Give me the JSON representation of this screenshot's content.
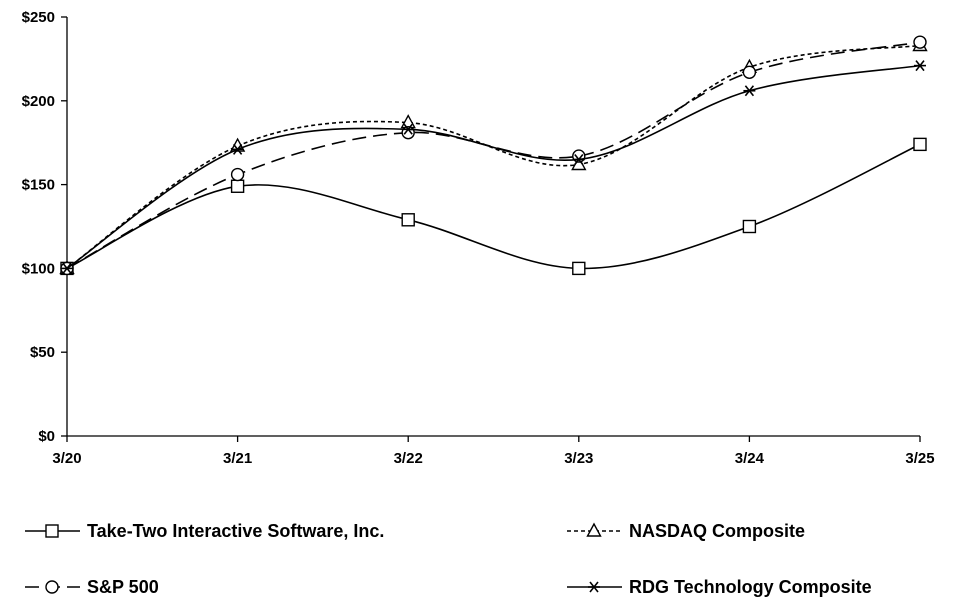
{
  "chart_data": {
    "type": "line",
    "title": "",
    "xlabel": "",
    "ylabel": "",
    "categories": [
      "3/20",
      "3/21",
      "3/22",
      "3/23",
      "3/24",
      "3/25"
    ],
    "y_ticks": [
      "$0",
      "$50",
      "$100",
      "$150",
      "$200",
      "$250"
    ],
    "y_tick_values": [
      0,
      50,
      100,
      150,
      200,
      250
    ],
    "ylim": [
      0,
      250
    ],
    "grid": false,
    "legend_position": "bottom",
    "series": [
      {
        "name": "Take-Two Interactive Software, Inc.",
        "marker": "square",
        "dash": "solid",
        "values": [
          100,
          149,
          129,
          100,
          125,
          174
        ]
      },
      {
        "name": "NASDAQ Composite",
        "marker": "triangle",
        "dash": "dotted",
        "values": [
          100,
          173,
          187,
          162,
          220,
          233
        ]
      },
      {
        "name": "S&P 500",
        "marker": "circle",
        "dash": "dashed",
        "values": [
          100,
          156,
          181,
          167,
          217,
          235
        ]
      },
      {
        "name": "RDG Technology Composite",
        "marker": "asterisk",
        "dash": "solid",
        "values": [
          100,
          171,
          183,
          165,
          206,
          221
        ]
      }
    ]
  }
}
